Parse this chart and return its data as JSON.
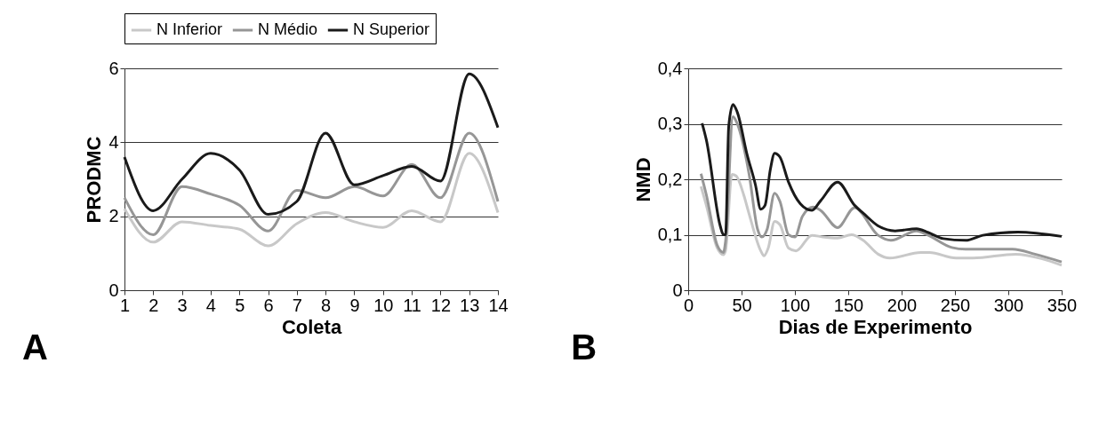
{
  "chart_data": [
    {
      "type": "line",
      "xlabel": "Coleta",
      "ylabel": "PRODMC",
      "annotations": [
        "A"
      ],
      "legend": "top",
      "grid": "y",
      "x": [
        1,
        2,
        3,
        4,
        5,
        6,
        7,
        8,
        9,
        10,
        11,
        12,
        13,
        14
      ],
      "xlim": [
        1,
        14
      ],
      "xticks": [
        1,
        2,
        3,
        4,
        5,
        6,
        7,
        8,
        9,
        10,
        11,
        12,
        13,
        14
      ],
      "ylim": [
        0,
        6
      ],
      "yticks": [
        0,
        2,
        4,
        6
      ],
      "series": [
        {
          "name": "N Inferior",
          "color": "#c8c8c8",
          "values": [
            2.2,
            1.3,
            1.85,
            1.75,
            1.65,
            1.2,
            1.8,
            2.1,
            1.85,
            1.7,
            2.15,
            1.85,
            3.7,
            2.1
          ]
        },
        {
          "name": "N Médio",
          "color": "#969696",
          "values": [
            2.5,
            1.5,
            2.8,
            2.6,
            2.3,
            1.6,
            2.7,
            2.5,
            2.8,
            2.55,
            3.4,
            2.5,
            4.25,
            2.4
          ]
        },
        {
          "name": "N Superior",
          "color": "#1a1a1a",
          "values": [
            3.6,
            2.15,
            3.0,
            3.7,
            3.25,
            2.05,
            2.4,
            4.25,
            2.85,
            3.1,
            3.35,
            2.95,
            5.85,
            4.4
          ]
        }
      ]
    },
    {
      "type": "line",
      "xlabel": "Dias de Experimento",
      "ylabel": "NMD",
      "annotations": [
        "B"
      ],
      "legend": "top",
      "grid": "y",
      "xlim": [
        0,
        350
      ],
      "xticks": [
        0,
        50,
        100,
        150,
        200,
        250,
        300,
        350
      ],
      "ylim": [
        0,
        0.4
      ],
      "yticks": [
        {
          "value": 0,
          "label": "0"
        },
        {
          "value": 0.1,
          "label": "0,1"
        },
        {
          "value": 0.2,
          "label": "0,2"
        },
        {
          "value": 0.3,
          "label": "0,3"
        },
        {
          "value": 0.4,
          "label": "0,4"
        }
      ],
      "series": [
        {
          "name": "N Inferior",
          "color": "#c8c8c8",
          "x": [
            12,
            17,
            27,
            33,
            35,
            41,
            45,
            52,
            57,
            68,
            71,
            75,
            81,
            86,
            94,
            101,
            116,
            126,
            140,
            153,
            164,
            178,
            189,
            218,
            226,
            251,
            267,
            307,
            331,
            350
          ],
          "values": [
            0.187,
            0.153,
            0.077,
            0.064,
            0.071,
            0.209,
            0.206,
            0.172,
            0.138,
            0.071,
            0.062,
            0.076,
            0.124,
            0.118,
            0.076,
            0.071,
            0.099,
            0.096,
            0.094,
            0.1,
            0.09,
            0.065,
            0.058,
            0.068,
            0.068,
            0.058,
            0.058,
            0.065,
            0.057,
            0.045
          ]
        },
        {
          "name": "N Médio",
          "color": "#969696",
          "x": [
            12,
            17,
            27,
            33,
            35,
            42,
            46,
            57,
            65,
            69,
            74,
            81,
            86,
            94,
            100,
            107,
            117,
            124,
            140,
            156,
            178,
            190,
            214,
            225,
            247,
            260,
            304,
            325,
            350
          ],
          "values": [
            0.21,
            0.172,
            0.082,
            0.068,
            0.088,
            0.313,
            0.3,
            0.21,
            0.11,
            0.096,
            0.11,
            0.175,
            0.16,
            0.1,
            0.096,
            0.133,
            0.15,
            0.144,
            0.113,
            0.149,
            0.099,
            0.09,
            0.107,
            0.099,
            0.077,
            0.074,
            0.074,
            0.065,
            0.051
          ]
        },
        {
          "name": "N Superior",
          "color": "#1a1a1a",
          "x": [
            13,
            17,
            30,
            33,
            35,
            38,
            42,
            46,
            55,
            63,
            68,
            72,
            77,
            81,
            86,
            94,
            105,
            116,
            124,
            140,
            156,
            164,
            178,
            194,
            214,
            225,
            239,
            260,
            276,
            309,
            350
          ],
          "values": [
            0.301,
            0.271,
            0.116,
            0.1,
            0.1,
            0.296,
            0.335,
            0.321,
            0.246,
            0.19,
            0.146,
            0.153,
            0.218,
            0.247,
            0.24,
            0.195,
            0.156,
            0.144,
            0.161,
            0.195,
            0.153,
            0.139,
            0.116,
            0.107,
            0.111,
            0.104,
            0.093,
            0.09,
            0.099,
            0.105,
            0.097
          ]
        }
      ]
    }
  ]
}
